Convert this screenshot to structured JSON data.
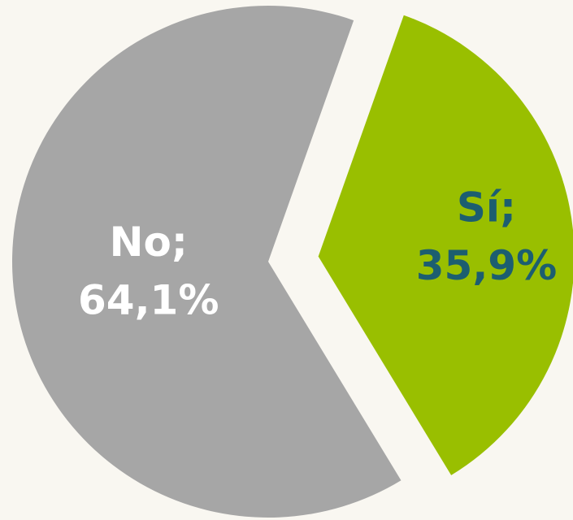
{
  "chart_data": {
    "type": "pie",
    "categories": [
      "Sí",
      "No"
    ],
    "values": [
      35.9,
      64.1
    ],
    "value_labels": [
      "35,9%",
      "64,1%"
    ],
    "label_separator": ";",
    "colors": [
      "#99bf00",
      "#a6a6a6"
    ],
    "label_colors": [
      "#1c5e70",
      "#ffffff"
    ]
  }
}
